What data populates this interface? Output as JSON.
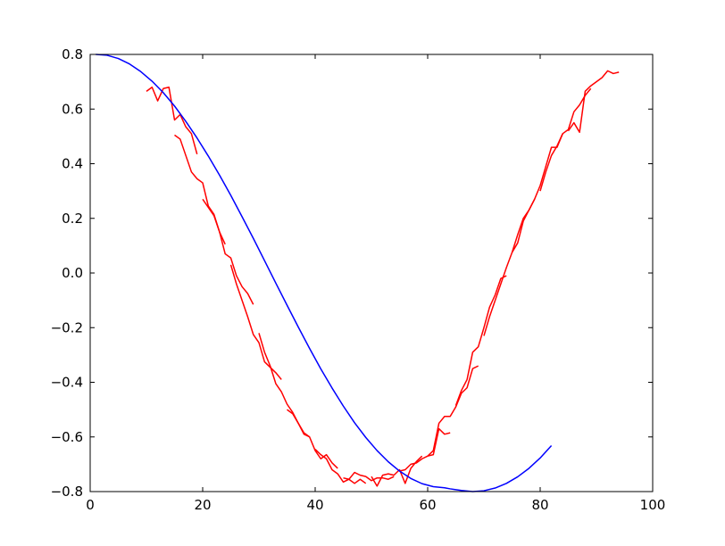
{
  "chart_data": {
    "type": "line",
    "title": "",
    "xlabel": "",
    "ylabel": "",
    "xlim": [
      0,
      100
    ],
    "ylim": [
      -0.8,
      0.8
    ],
    "x_ticks": [
      0,
      20,
      40,
      60,
      80,
      100
    ],
    "x_tick_labels": [
      "0",
      "20",
      "40",
      "60",
      "80",
      "100"
    ],
    "y_ticks": [
      -0.8,
      -0.6,
      -0.4,
      -0.2,
      0.0,
      0.2,
      0.4,
      0.6,
      0.8
    ],
    "y_tick_labels": [
      "−0.8",
      "−0.6",
      "−0.4",
      "−0.2",
      "0.0",
      "0.2",
      "0.4",
      "0.6",
      "0.8"
    ],
    "grid": false,
    "legend": "none",
    "series": [
      {
        "color": "#0000ff",
        "points": [
          [
            1,
            0.8
          ],
          [
            3,
            0.797
          ],
          [
            5,
            0.785
          ],
          [
            7,
            0.765
          ],
          [
            9,
            0.737
          ],
          [
            11,
            0.702
          ],
          [
            13,
            0.66
          ],
          [
            15,
            0.611
          ],
          [
            17,
            0.555
          ],
          [
            19,
            0.494
          ],
          [
            21,
            0.428
          ],
          [
            23,
            0.358
          ],
          [
            25,
            0.284
          ],
          [
            27,
            0.206
          ],
          [
            29,
            0.127
          ],
          [
            31,
            0.045
          ],
          [
            33,
            -0.037
          ],
          [
            35,
            -0.118
          ],
          [
            37,
            -0.198
          ],
          [
            39,
            -0.276
          ],
          [
            41,
            -0.351
          ],
          [
            43,
            -0.421
          ],
          [
            45,
            -0.487
          ],
          [
            47,
            -0.548
          ],
          [
            49,
            -0.602
          ],
          [
            51,
            -0.65
          ],
          [
            53,
            -0.691
          ],
          [
            55,
            -0.725
          ],
          [
            57,
            -0.752
          ],
          [
            59,
            -0.771
          ],
          [
            61,
            -0.782
          ],
          [
            63,
            -0.786
          ],
          [
            64,
            -0.79
          ],
          [
            66,
            -0.796
          ],
          [
            68,
            -0.8
          ],
          [
            70,
            -0.797
          ],
          [
            72,
            -0.787
          ],
          [
            74,
            -0.77
          ],
          [
            76,
            -0.746
          ],
          [
            78,
            -0.715
          ],
          [
            80,
            -0.677
          ],
          [
            82,
            -0.632
          ]
        ]
      }
    ],
    "noisy_series_color": "#ff0000",
    "noisy_segments": [
      [
        [
          10,
          0.665
        ],
        [
          11,
          0.68
        ],
        [
          12,
          0.63
        ],
        [
          13,
          0.675
        ],
        [
          14,
          0.68
        ],
        [
          15,
          0.56
        ],
        [
          16,
          0.58
        ],
        [
          17,
          0.535
        ],
        [
          18,
          0.51
        ],
        [
          19,
          0.435
        ]
      ],
      [
        [
          15,
          0.505
        ],
        [
          16,
          0.49
        ],
        [
          17,
          0.43
        ],
        [
          18,
          0.37
        ],
        [
          19,
          0.345
        ],
        [
          20,
          0.33
        ],
        [
          21,
          0.245
        ],
        [
          22,
          0.215
        ],
        [
          23,
          0.15
        ],
        [
          24,
          0.105
        ]
      ],
      [
        [
          20,
          0.27
        ],
        [
          21,
          0.24
        ],
        [
          22,
          0.21
        ],
        [
          23,
          0.15
        ],
        [
          24,
          0.07
        ],
        [
          25,
          0.055
        ],
        [
          26,
          -0.01
        ],
        [
          27,
          -0.05
        ],
        [
          28,
          -0.075
        ],
        [
          29,
          -0.115
        ]
      ],
      [
        [
          25,
          0.03
        ],
        [
          26,
          -0.04
        ],
        [
          27,
          -0.1
        ],
        [
          28,
          -0.16
        ],
        [
          29,
          -0.225
        ],
        [
          30,
          -0.255
        ],
        [
          31,
          -0.325
        ],
        [
          32,
          -0.345
        ],
        [
          33,
          -0.365
        ],
        [
          34,
          -0.39
        ]
      ],
      [
        [
          30,
          -0.22
        ],
        [
          31,
          -0.29
        ],
        [
          32,
          -0.34
        ],
        [
          33,
          -0.405
        ],
        [
          34,
          -0.435
        ],
        [
          35,
          -0.48
        ],
        [
          36,
          -0.51
        ],
        [
          37,
          -0.55
        ],
        [
          38,
          -0.59
        ],
        [
          39,
          -0.6
        ]
      ],
      [
        [
          35,
          -0.5
        ],
        [
          36,
          -0.515
        ],
        [
          37,
          -0.55
        ],
        [
          38,
          -0.585
        ],
        [
          39,
          -0.6
        ],
        [
          40,
          -0.65
        ],
        [
          41,
          -0.68
        ],
        [
          42,
          -0.665
        ],
        [
          43,
          -0.695
        ],
        [
          44,
          -0.715
        ]
      ],
      [
        [
          40,
          -0.645
        ],
        [
          41,
          -0.665
        ],
        [
          42,
          -0.68
        ],
        [
          43,
          -0.72
        ],
        [
          44,
          -0.735
        ],
        [
          45,
          -0.765
        ],
        [
          46,
          -0.755
        ],
        [
          47,
          -0.77
        ],
        [
          48,
          -0.755
        ],
        [
          49,
          -0.77
        ]
      ],
      [
        [
          45,
          -0.75
        ],
        [
          46,
          -0.755
        ],
        [
          47,
          -0.73
        ],
        [
          48,
          -0.74
        ],
        [
          49,
          -0.745
        ],
        [
          50,
          -0.76
        ],
        [
          51,
          -0.75
        ],
        [
          52,
          -0.75
        ],
        [
          53,
          -0.755
        ],
        [
          54,
          -0.745
        ]
      ],
      [
        [
          50,
          -0.745
        ],
        [
          51,
          -0.78
        ],
        [
          52,
          -0.74
        ],
        [
          53,
          -0.735
        ],
        [
          54,
          -0.74
        ],
        [
          55,
          -0.72
        ],
        [
          56,
          -0.77
        ],
        [
          57,
          -0.715
        ],
        [
          58,
          -0.69
        ],
        [
          59,
          -0.67
        ]
      ],
      [
        [
          55,
          -0.725
        ],
        [
          56,
          -0.72
        ],
        [
          57,
          -0.7
        ],
        [
          58,
          -0.695
        ],
        [
          59,
          -0.68
        ],
        [
          60,
          -0.67
        ],
        [
          61,
          -0.665
        ],
        [
          62,
          -0.57
        ],
        [
          63,
          -0.59
        ],
        [
          64,
          -0.585
        ]
      ],
      [
        [
          60,
          -0.67
        ],
        [
          61,
          -0.65
        ],
        [
          62,
          -0.55
        ],
        [
          63,
          -0.525
        ],
        [
          64,
          -0.525
        ],
        [
          65,
          -0.49
        ],
        [
          66,
          -0.44
        ],
        [
          67,
          -0.42
        ],
        [
          68,
          -0.35
        ],
        [
          69,
          -0.34
        ]
      ],
      [
        [
          65,
          -0.485
        ],
        [
          66,
          -0.43
        ],
        [
          67,
          -0.39
        ],
        [
          68,
          -0.29
        ],
        [
          69,
          -0.27
        ],
        [
          70,
          -0.2
        ],
        [
          71,
          -0.125
        ],
        [
          72,
          -0.08
        ],
        [
          73,
          -0.02
        ],
        [
          74,
          -0.01
        ]
      ],
      [
        [
          70,
          -0.23
        ],
        [
          71,
          -0.16
        ],
        [
          72,
          -0.1
        ],
        [
          73,
          -0.04
        ],
        [
          74,
          0.02
        ],
        [
          75,
          0.075
        ],
        [
          76,
          0.11
        ],
        [
          77,
          0.19
        ],
        [
          78,
          0.23
        ],
        [
          79,
          0.27
        ]
      ],
      [
        [
          75,
          0.075
        ],
        [
          76,
          0.14
        ],
        [
          77,
          0.2
        ],
        [
          78,
          0.23
        ],
        [
          79,
          0.27
        ],
        [
          80,
          0.32
        ],
        [
          81,
          0.39
        ],
        [
          82,
          0.46
        ],
        [
          83,
          0.46
        ],
        [
          84,
          0.51
        ]
      ],
      [
        [
          80,
          0.3
        ],
        [
          81,
          0.37
        ],
        [
          82,
          0.43
        ],
        [
          83,
          0.465
        ],
        [
          84,
          0.51
        ],
        [
          85,
          0.525
        ],
        [
          86,
          0.59
        ],
        [
          87,
          0.615
        ],
        [
          88,
          0.65
        ],
        [
          89,
          0.675
        ]
      ],
      [
        [
          85,
          0.52
        ],
        [
          86,
          0.55
        ],
        [
          87,
          0.515
        ],
        [
          88,
          0.665
        ],
        [
          89,
          0.685
        ],
        [
          90,
          0.7
        ],
        [
          91,
          0.715
        ],
        [
          92,
          0.74
        ],
        [
          93,
          0.73
        ],
        [
          94,
          0.735
        ]
      ]
    ]
  }
}
